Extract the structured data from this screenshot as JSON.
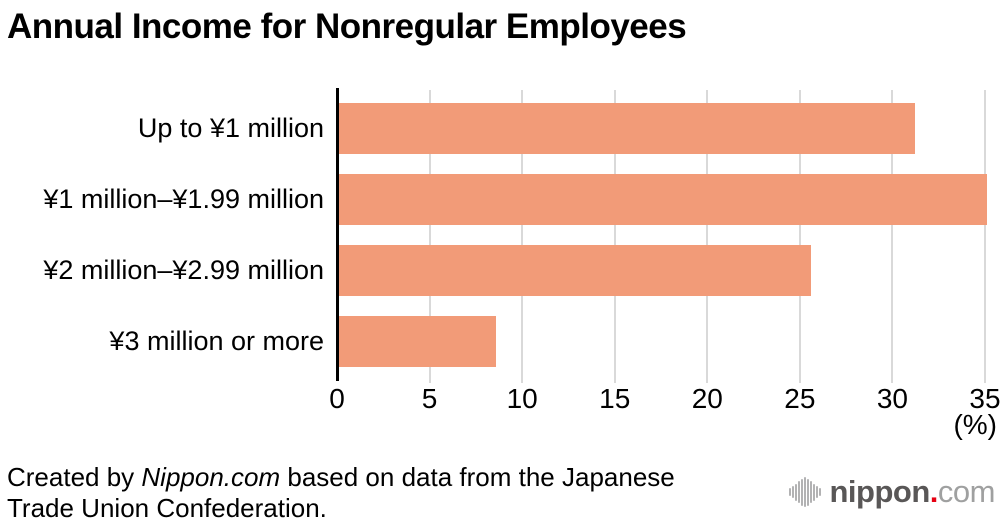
{
  "title": "Annual Income for Nonregular Employees",
  "chart_data": {
    "type": "bar",
    "orientation": "horizontal",
    "title": "Annual Income for Nonregular Employees",
    "categories": [
      "Up to ¥1 million",
      "¥1 million–¥1.99 million",
      "¥2 million–¥2.99 million",
      "¥3 million or more"
    ],
    "values": [
      31.1,
      35.0,
      25.5,
      8.5
    ],
    "xlabel": "(%)",
    "ylabel": "",
    "xlim": [
      0,
      35
    ],
    "x_ticks": [
      0,
      5,
      10,
      15,
      20,
      25,
      30,
      35
    ],
    "grid": true,
    "legend": false,
    "bar_color": "#f29b78",
    "gridline_color": "#d9d9d9",
    "axis_color": "#000000"
  },
  "footer": {
    "credit_prefix": "Created by ",
    "credit_source": "Nippon.com",
    "credit_suffix": " based on data from the Japanese Trade Union Confederation."
  },
  "logo": {
    "icon": "soundwave-bars-icon",
    "name_bold": "nippon",
    "dot": ".",
    "name_light": "com",
    "colors": {
      "icon_bars": "#b2b2b3",
      "name_bold": "#595757",
      "dot": "#e60012",
      "name_light": "#9fa0a0"
    }
  }
}
